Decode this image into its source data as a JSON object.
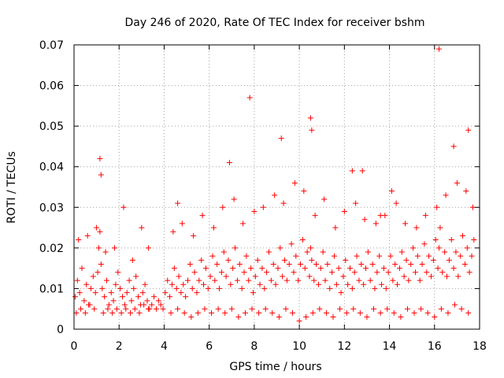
{
  "chart_data": {
    "type": "scatter",
    "title": "Day 246 of 2020, Rate Of TEC Index for receiver bshm",
    "xlabel": "GPS time / hours",
    "ylabel": "ROTI / TECUs",
    "xlim": [
      0,
      18
    ],
    "ylim": [
      0,
      0.07
    ],
    "xticks": [
      0,
      2,
      4,
      6,
      8,
      10,
      12,
      14,
      16,
      18
    ],
    "xtick_labels": [
      "0",
      "2",
      "4",
      "6",
      "8",
      "10",
      "12",
      "14",
      "16",
      "18"
    ],
    "yticks": [
      0,
      0.01,
      0.02,
      0.03,
      0.04,
      0.05,
      0.06,
      0.07
    ],
    "ytick_labels": [
      "0",
      "0.01",
      "0.02",
      "0.03",
      "0.04",
      "0.05",
      "0.06",
      "0.07"
    ],
    "grid": true,
    "marker": "+",
    "color": "#ff0000",
    "series": [
      {
        "name": "ROTI",
        "x": [
          0.05,
          0.15,
          0.25,
          0.35,
          0.45,
          0.55,
          0.65,
          0.75,
          0.85,
          0.95,
          1.05,
          1.1,
          1.15,
          1.2,
          1.25,
          1.35,
          1.45,
          1.55,
          1.65,
          1.75,
          1.85,
          1.95,
          2.05,
          2.15,
          2.25,
          2.35,
          2.45,
          2.55,
          2.65,
          2.75,
          2.85,
          2.95,
          3.05,
          3.15,
          3.25,
          3.35,
          3.45,
          3.55,
          3.65,
          3.75,
          3.85,
          3.95,
          4.05,
          4.15,
          4.25,
          4.35,
          4.45,
          4.55,
          4.65,
          4.75,
          4.85,
          4.95,
          5.05,
          5.15,
          5.25,
          5.35,
          5.45,
          5.55,
          5.65,
          5.75,
          5.85,
          5.95,
          6.05,
          6.15,
          6.25,
          6.35,
          6.45,
          6.55,
          6.65,
          6.75,
          6.85,
          6.95,
          7.05,
          7.15,
          7.25,
          7.35,
          7.45,
          7.55,
          7.65,
          7.75,
          7.85,
          7.95,
          8.05,
          8.15,
          8.25,
          8.35,
          8.45,
          8.55,
          8.65,
          8.75,
          8.85,
          8.95,
          9.05,
          9.15,
          9.25,
          9.35,
          9.45,
          9.55,
          9.65,
          9.75,
          9.85,
          9.95,
          10.05,
          10.15,
          10.25,
          10.35,
          10.45,
          10.5,
          10.55,
          10.65,
          10.75,
          10.85,
          10.95,
          11.05,
          11.15,
          11.25,
          11.35,
          11.45,
          11.55,
          11.65,
          11.75,
          11.85,
          11.95,
          12.05,
          12.15,
          12.25,
          12.35,
          12.45,
          12.55,
          12.65,
          12.75,
          12.85,
          12.95,
          13.05,
          13.15,
          13.25,
          13.35,
          13.45,
          13.55,
          13.65,
          13.75,
          13.85,
          13.95,
          14.05,
          14.15,
          14.25,
          14.35,
          14.45,
          14.55,
          14.65,
          14.75,
          14.85,
          14.95,
          15.05,
          15.15,
          15.25,
          15.35,
          15.45,
          15.55,
          15.65,
          15.75,
          15.85,
          15.95,
          16.05,
          16.15,
          16.2,
          16.25,
          16.35,
          16.45,
          16.55,
          16.65,
          16.75,
          16.85,
          16.95,
          17.05,
          17.15,
          17.25,
          17.35,
          17.45,
          17.55,
          17.65,
          17.75,
          0.1,
          0.3,
          0.5,
          0.7,
          0.9,
          1.3,
          1.5,
          1.7,
          1.9,
          2.1,
          2.3,
          2.5,
          2.7,
          2.9,
          3.1,
          3.3,
          4.3,
          4.6,
          4.9,
          5.2,
          5.5,
          5.8,
          6.1,
          6.4,
          6.7,
          7.0,
          7.3,
          7.6,
          7.9,
          8.2,
          8.5,
          8.8,
          9.1,
          9.4,
          9.7,
          10.0,
          10.3,
          10.6,
          10.9,
          11.2,
          11.5,
          11.8,
          12.1,
          12.4,
          12.7,
          13.0,
          13.3,
          13.6,
          13.9,
          14.2,
          14.5,
          14.8,
          15.1,
          15.4,
          15.7,
          16.0,
          16.3,
          16.6,
          16.9,
          17.2,
          17.5,
          0.2,
          0.6,
          1.0,
          1.4,
          1.8,
          2.2,
          2.6,
          3.0,
          4.4,
          4.8,
          5.3,
          5.7,
          6.2,
          6.6,
          7.1,
          7.5,
          8.0,
          8.4,
          8.9,
          9.3,
          9.8,
          10.2,
          10.7,
          11.1,
          11.6,
          12.0,
          12.5,
          12.9,
          13.4,
          13.8,
          14.3,
          14.7,
          15.2,
          15.6,
          16.1,
          16.5,
          17.0,
          17.4,
          17.7,
          1.15,
          1.2,
          7.8,
          9.2,
          10.5,
          10.55,
          6.9,
          16.2,
          16.85,
          17.5,
          12.35,
          12.8,
          13.6,
          14.1,
          3.3,
          4.6
        ],
        "y": [
          0.008,
          0.012,
          0.009,
          0.015,
          0.007,
          0.011,
          0.006,
          0.01,
          0.013,
          0.009,
          0.014,
          0.02,
          0.024,
          0.016,
          0.01,
          0.008,
          0.012,
          0.006,
          0.009,
          0.007,
          0.011,
          0.014,
          0.01,
          0.008,
          0.006,
          0.009,
          0.012,
          0.007,
          0.01,
          0.013,
          0.008,
          0.006,
          0.009,
          0.011,
          0.007,
          0.005,
          0.006,
          0.008,
          0.005,
          0.007,
          0.006,
          0.005,
          0.009,
          0.012,
          0.008,
          0.011,
          0.015,
          0.01,
          0.013,
          0.009,
          0.011,
          0.008,
          0.012,
          0.016,
          0.01,
          0.014,
          0.009,
          0.012,
          0.017,
          0.011,
          0.015,
          0.01,
          0.013,
          0.018,
          0.012,
          0.016,
          0.01,
          0.014,
          0.019,
          0.013,
          0.017,
          0.011,
          0.015,
          0.02,
          0.012,
          0.016,
          0.01,
          0.014,
          0.018,
          0.012,
          0.015,
          0.009,
          0.013,
          0.017,
          0.011,
          0.015,
          0.01,
          0.014,
          0.019,
          0.012,
          0.016,
          0.011,
          0.015,
          0.02,
          0.013,
          0.017,
          0.012,
          0.016,
          0.021,
          0.014,
          0.018,
          0.012,
          0.016,
          0.022,
          0.015,
          0.019,
          0.013,
          0.02,
          0.017,
          0.012,
          0.016,
          0.011,
          0.015,
          0.019,
          0.012,
          0.016,
          0.01,
          0.014,
          0.018,
          0.011,
          0.015,
          0.009,
          0.013,
          0.017,
          0.011,
          0.015,
          0.01,
          0.014,
          0.018,
          0.012,
          0.016,
          0.011,
          0.015,
          0.019,
          0.012,
          0.016,
          0.01,
          0.014,
          0.018,
          0.011,
          0.015,
          0.01,
          0.014,
          0.018,
          0.012,
          0.016,
          0.011,
          0.015,
          0.019,
          0.013,
          0.017,
          0.012,
          0.016,
          0.02,
          0.014,
          0.018,
          0.012,
          0.016,
          0.021,
          0.014,
          0.018,
          0.013,
          0.017,
          0.022,
          0.015,
          0.02,
          0.025,
          0.014,
          0.019,
          0.013,
          0.017,
          0.022,
          0.015,
          0.019,
          0.013,
          0.018,
          0.023,
          0.016,
          0.02,
          0.014,
          0.018,
          0.022,
          0.004,
          0.005,
          0.004,
          0.006,
          0.005,
          0.004,
          0.005,
          0.004,
          0.005,
          0.004,
          0.005,
          0.004,
          0.005,
          0.004,
          0.006,
          0.005,
          0.004,
          0.005,
          0.004,
          0.003,
          0.004,
          0.005,
          0.004,
          0.005,
          0.004,
          0.005,
          0.003,
          0.004,
          0.005,
          0.004,
          0.005,
          0.004,
          0.003,
          0.005,
          0.004,
          0.002,
          0.003,
          0.004,
          0.005,
          0.004,
          0.003,
          0.005,
          0.004,
          0.005,
          0.004,
          0.003,
          0.005,
          0.004,
          0.005,
          0.004,
          0.003,
          0.005,
          0.004,
          0.005,
          0.004,
          0.003,
          0.005,
          0.004,
          0.006,
          0.005,
          0.004,
          0.022,
          0.023,
          0.025,
          0.019,
          0.02,
          0.03,
          0.017,
          0.025,
          0.024,
          0.026,
          0.023,
          0.028,
          0.025,
          0.03,
          0.032,
          0.026,
          0.029,
          0.03,
          0.033,
          0.031,
          0.036,
          0.034,
          0.028,
          0.032,
          0.025,
          0.029,
          0.031,
          0.027,
          0.026,
          0.028,
          0.031,
          0.026,
          0.025,
          0.028,
          0.03,
          0.033,
          0.036,
          0.034,
          0.03,
          0.042,
          0.038,
          0.057,
          0.047,
          0.052,
          0.049,
          0.041,
          0.069,
          0.045,
          0.049,
          0.039,
          0.039,
          0.028,
          0.034,
          0.02,
          0.031
        ]
      }
    ]
  }
}
